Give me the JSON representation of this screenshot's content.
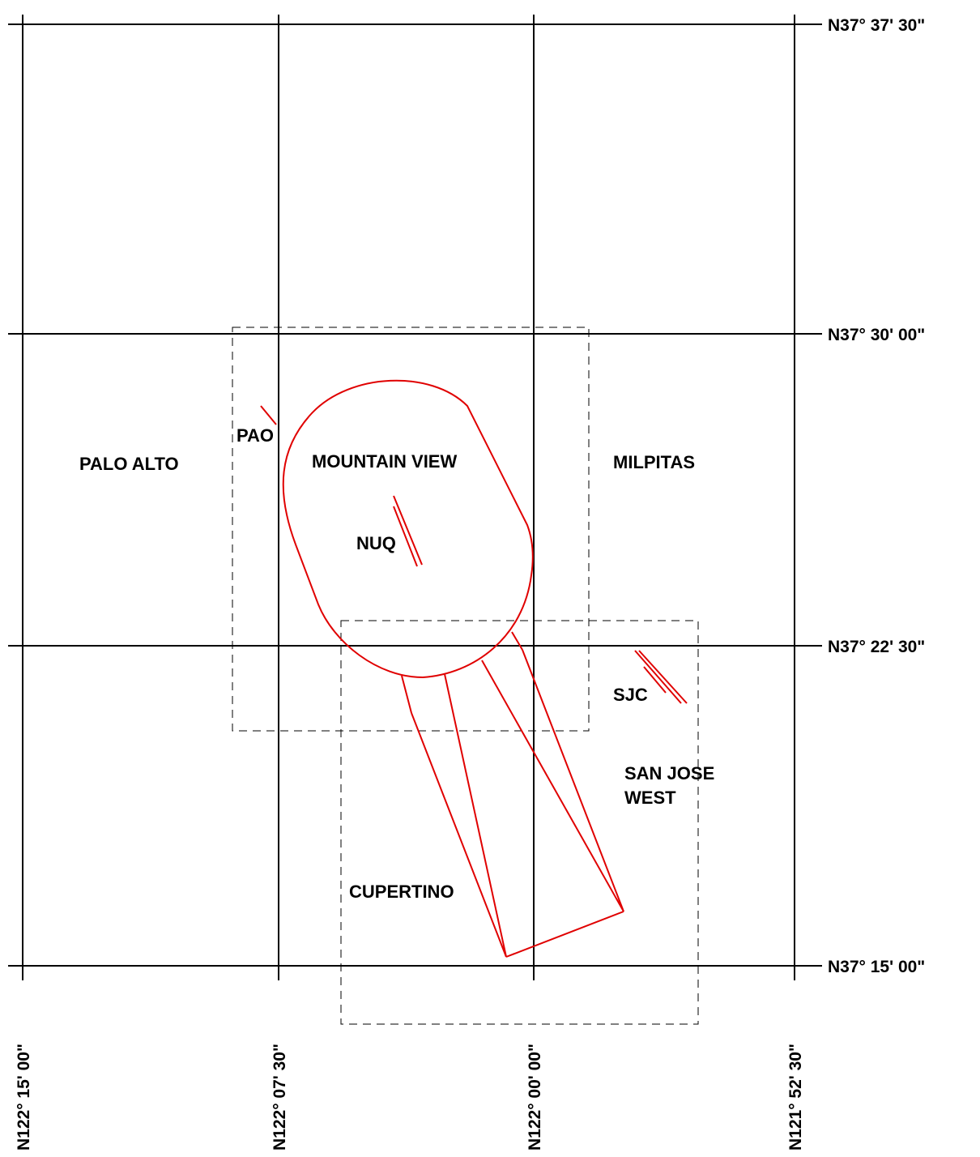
{
  "latitude_labels": {
    "n37_37_30": "N37° 37' 30\"",
    "n37_30_00": "N37° 30' 00\"",
    "n37_22_30": "N37° 22' 30\"",
    "n37_15_00": "N37° 15' 00\""
  },
  "longitude_labels": {
    "n122_15_00": "N122° 15' 00\"",
    "n122_07_30": "N122° 07' 30\"",
    "n122_00_00": "N122° 00' 00\"",
    "n121_52_30": "N121° 52' 30\""
  },
  "places": {
    "palo_alto": "PALO ALTO",
    "mountain_view": "MOUNTAIN VIEW",
    "milpitas": "MILPITAS",
    "cupertino": "CUPERTINO",
    "san_jose_west_line1": "SAN JOSE",
    "san_jose_west_line2": "WEST"
  },
  "airports": {
    "pao": "PAO",
    "nuq": "NUQ",
    "sjc": "SJC"
  },
  "colors": {
    "grid": "#000000",
    "airspace": "#e00000"
  }
}
